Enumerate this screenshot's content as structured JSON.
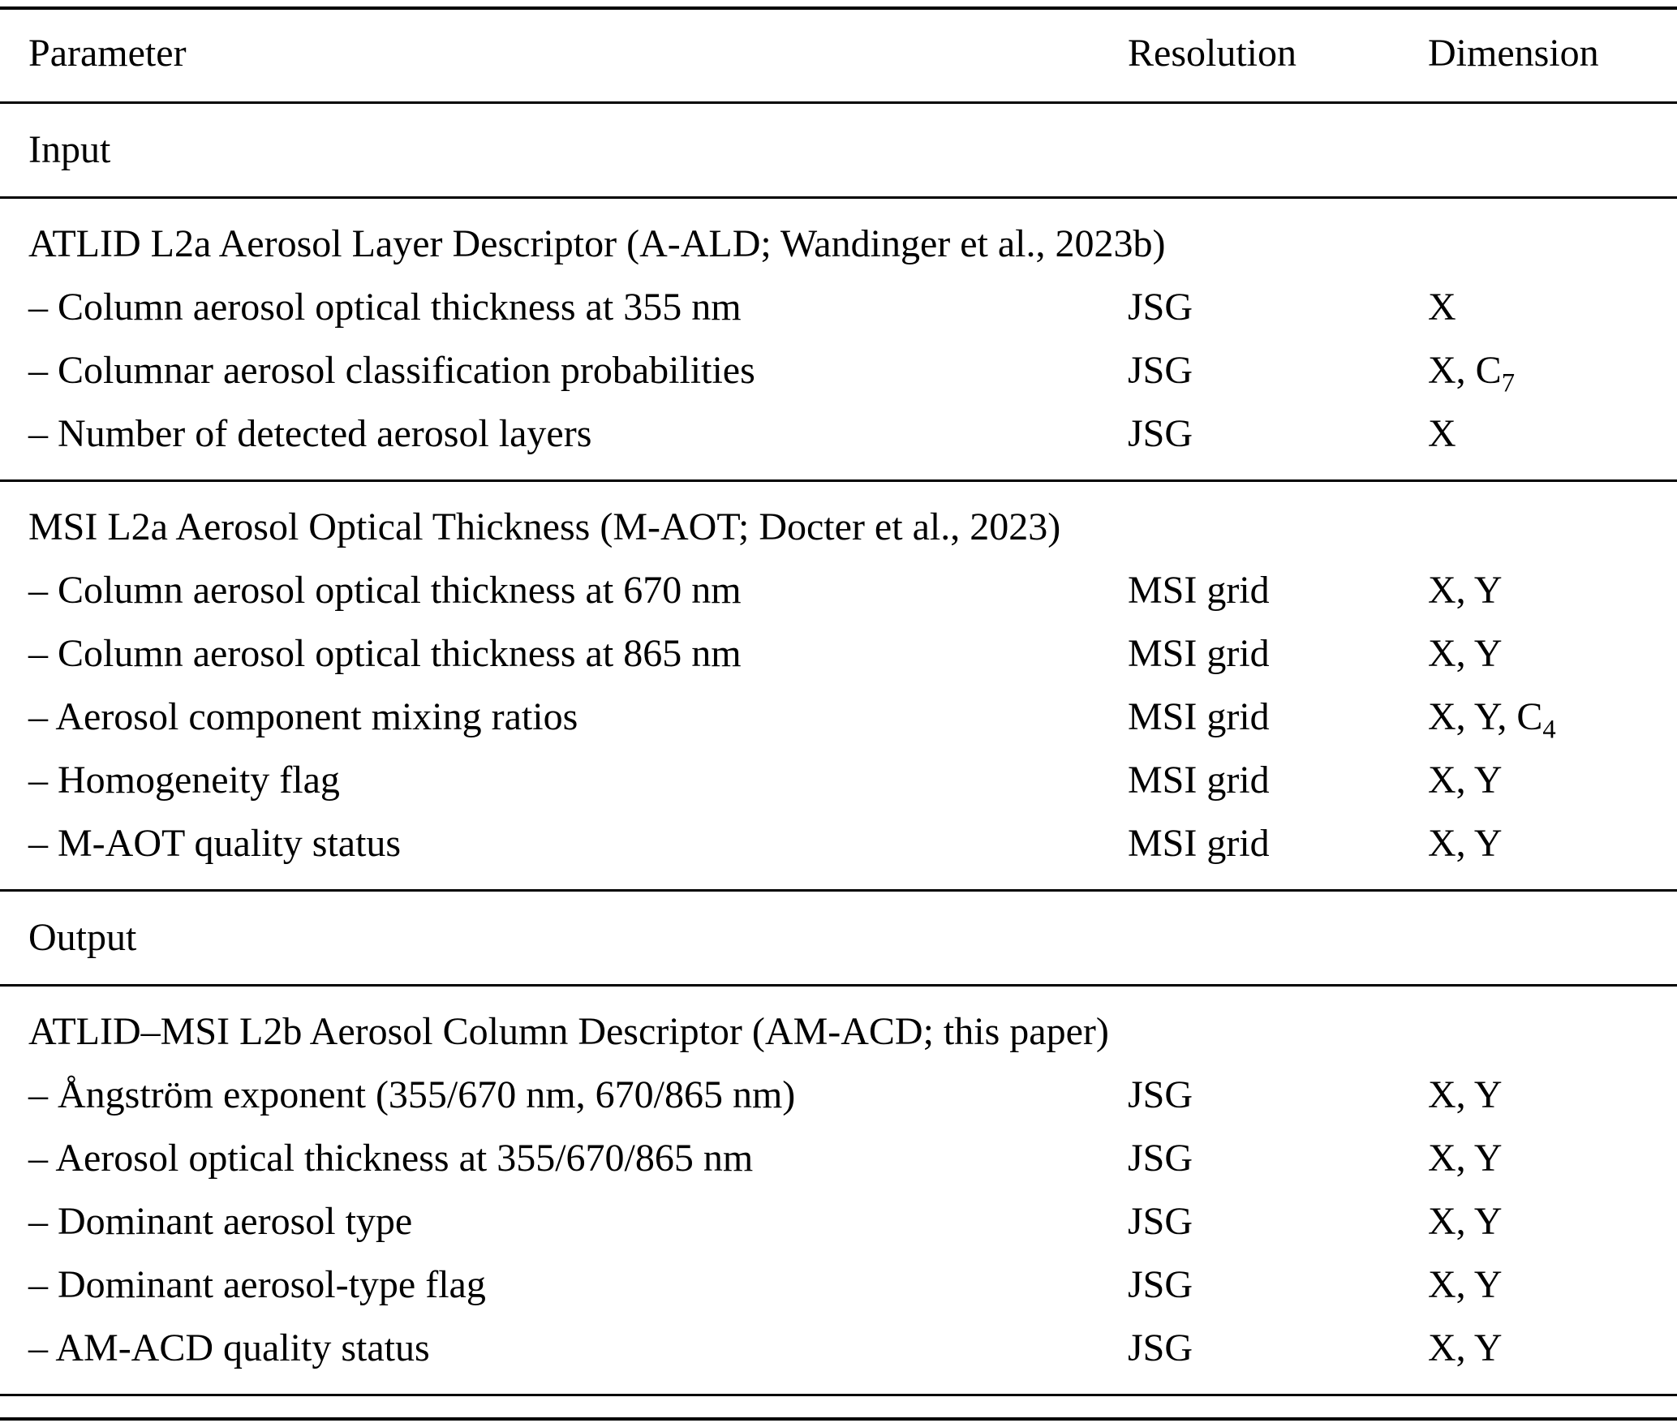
{
  "table": {
    "headers": {
      "parameter": "Parameter",
      "resolution": "Resolution",
      "dimension": "Dimension"
    },
    "sections": [
      {
        "label": "Input",
        "groups": [
          {
            "title": "ATLID L2a Aerosol Layer Descriptor (A-ALD; Wandinger et al., 2023b)",
            "rows": [
              {
                "parameter": "– Column aerosol optical thickness at 355 nm",
                "resolution": "JSG",
                "dimension": "X"
              },
              {
                "parameter": "– Columnar aerosol classification probabilities",
                "resolution": "JSG",
                "dimension": "X, C",
                "dimension_sub": "7"
              },
              {
                "parameter": "– Number of detected aerosol layers",
                "resolution": "JSG",
                "dimension": "X"
              }
            ]
          },
          {
            "title": "MSI L2a Aerosol Optical Thickness (M-AOT; Docter et al., 2023)",
            "rows": [
              {
                "parameter": "– Column aerosol optical thickness at 670 nm",
                "resolution": "MSI grid",
                "dimension": "X, Y"
              },
              {
                "parameter": "– Column aerosol optical thickness at 865 nm",
                "resolution": "MSI grid",
                "dimension": "X, Y"
              },
              {
                "parameter": "– Aerosol component mixing ratios",
                "resolution": "MSI grid",
                "dimension": "X, Y, C",
                "dimension_sub": "4"
              },
              {
                "parameter": "– Homogeneity flag",
                "resolution": "MSI grid",
                "dimension": "X, Y"
              },
              {
                "parameter": "– M-AOT quality status",
                "resolution": "MSI grid",
                "dimension": "X, Y"
              }
            ]
          }
        ]
      },
      {
        "label": "Output",
        "groups": [
          {
            "title": "ATLID–MSI L2b Aerosol Column Descriptor (AM-ACD; this paper)",
            "rows": [
              {
                "parameter": "– Ångström exponent (355/670 nm, 670/865 nm)",
                "resolution": "JSG",
                "dimension": "X, Y"
              },
              {
                "parameter": "– Aerosol optical thickness at 355/670/865 nm",
                "resolution": "JSG",
                "dimension": "X, Y"
              },
              {
                "parameter": "– Dominant aerosol type",
                "resolution": "JSG",
                "dimension": "X, Y"
              },
              {
                "parameter": "– Dominant aerosol-type flag",
                "resolution": "JSG",
                "dimension": "X, Y"
              },
              {
                "parameter": "– AM-ACD quality status",
                "resolution": "JSG",
                "dimension": "X, Y"
              }
            ]
          }
        ]
      }
    ]
  }
}
